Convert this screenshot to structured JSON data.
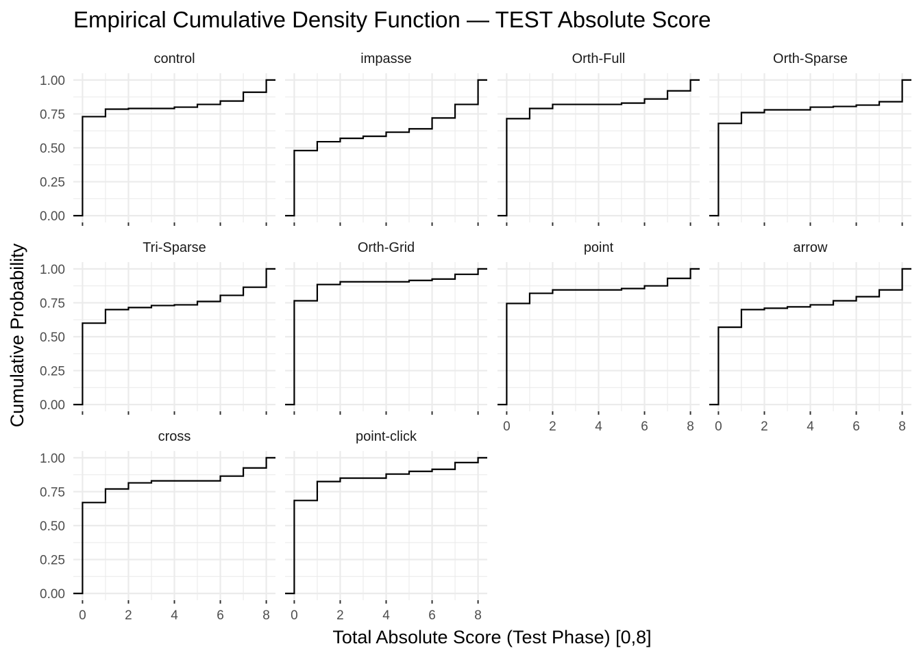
{
  "chart_data": {
    "type": "line",
    "step": true,
    "title": "Empirical Cumulative Density Function — TEST Absolute Score",
    "xlabel": "Total Absolute Score (Test Phase) [0,8]",
    "ylabel": "Cumulative Probability",
    "xlim": [
      0,
      8
    ],
    "ylim": [
      0,
      1
    ],
    "x_ticks": [
      "0",
      "2",
      "4",
      "6",
      "8"
    ],
    "y_ticks": [
      "0.00",
      "0.25",
      "0.50",
      "0.75",
      "1.00"
    ],
    "grid": true,
    "x": [
      0,
      1,
      2,
      3,
      4,
      5,
      6,
      7,
      8
    ],
    "facets": [
      {
        "name": "control",
        "values": [
          0.73,
          0.785,
          0.79,
          0.79,
          0.8,
          0.82,
          0.845,
          0.91,
          1.0
        ]
      },
      {
        "name": "impasse",
        "values": [
          0.48,
          0.545,
          0.57,
          0.585,
          0.615,
          0.64,
          0.72,
          0.82,
          1.0
        ]
      },
      {
        "name": "Orth-Full",
        "values": [
          0.715,
          0.79,
          0.82,
          0.82,
          0.82,
          0.83,
          0.86,
          0.92,
          1.0
        ]
      },
      {
        "name": "Orth-Sparse",
        "values": [
          0.68,
          0.76,
          0.78,
          0.78,
          0.8,
          0.805,
          0.815,
          0.84,
          1.0
        ]
      },
      {
        "name": "Tri-Sparse",
        "values": [
          0.6,
          0.7,
          0.715,
          0.73,
          0.735,
          0.76,
          0.805,
          0.865,
          1.0
        ]
      },
      {
        "name": "Orth-Grid",
        "values": [
          0.765,
          0.885,
          0.905,
          0.905,
          0.905,
          0.915,
          0.925,
          0.96,
          1.0
        ]
      },
      {
        "name": "point",
        "values": [
          0.745,
          0.82,
          0.845,
          0.845,
          0.845,
          0.855,
          0.875,
          0.93,
          1.0
        ]
      },
      {
        "name": "arrow",
        "values": [
          0.57,
          0.7,
          0.71,
          0.72,
          0.735,
          0.765,
          0.795,
          0.845,
          1.0
        ]
      },
      {
        "name": "cross",
        "values": [
          0.67,
          0.77,
          0.815,
          0.83,
          0.83,
          0.83,
          0.865,
          0.925,
          1.0
        ]
      },
      {
        "name": "point-click",
        "values": [
          0.685,
          0.825,
          0.85,
          0.85,
          0.88,
          0.9,
          0.915,
          0.965,
          1.0
        ]
      }
    ]
  }
}
